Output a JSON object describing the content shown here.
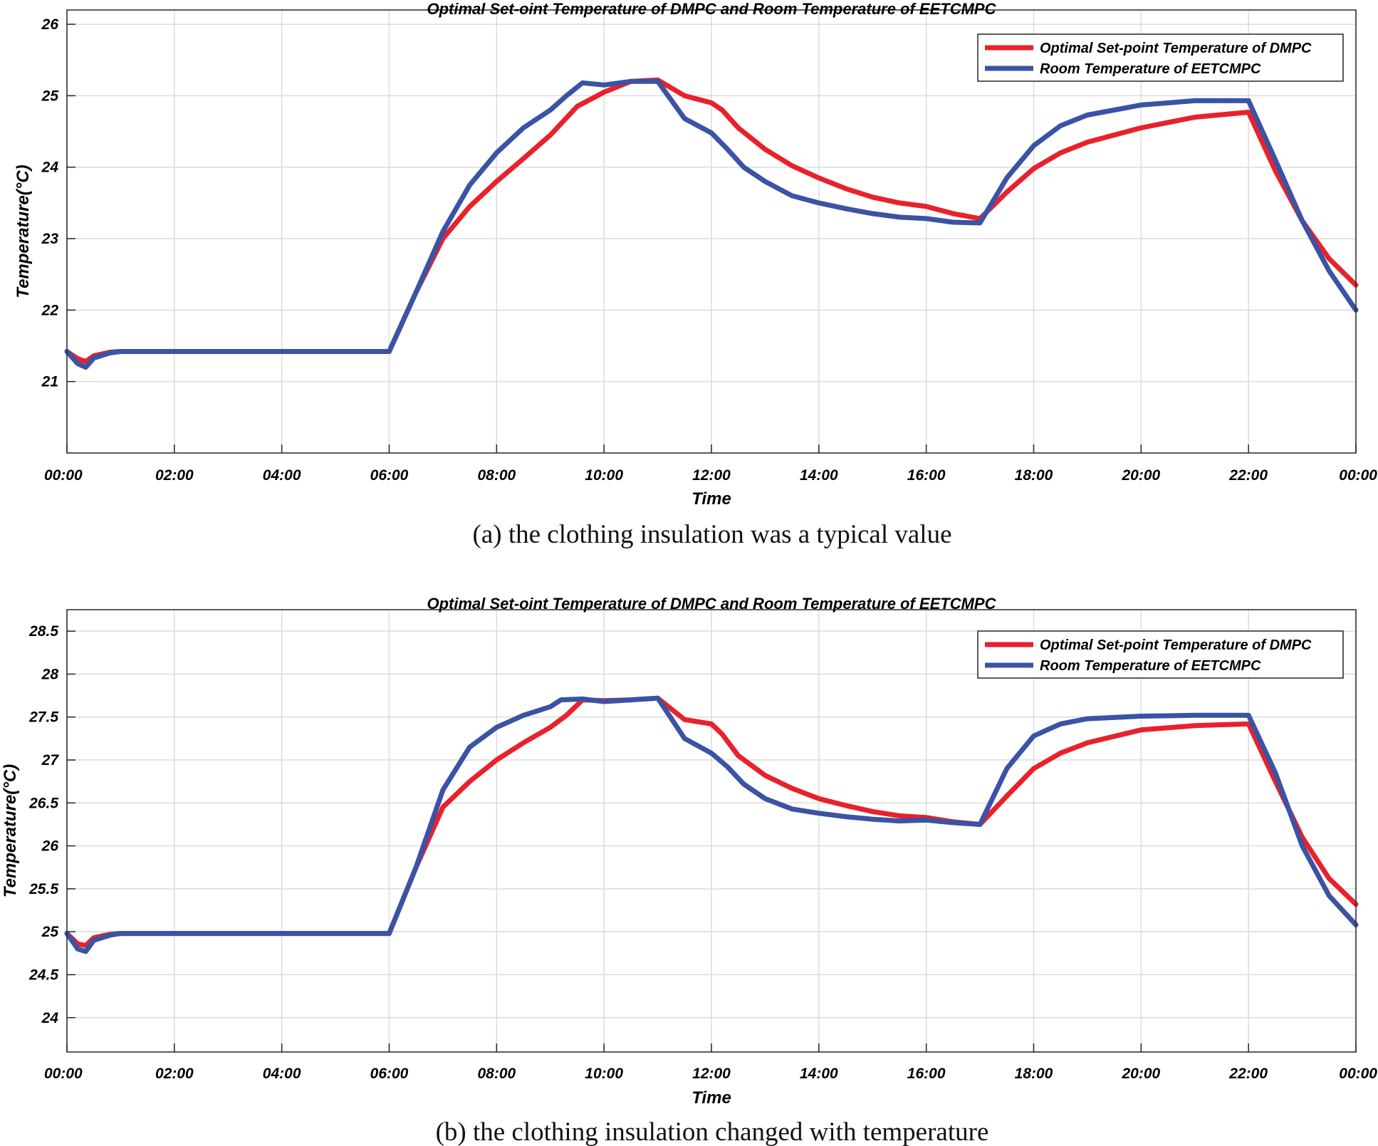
{
  "chart_data": [
    {
      "type": "line",
      "title": "Optimal Set-oint Temperature of DMPC and Room Temperature of EETCMPC",
      "xlabel": "Time",
      "ylabel": "Temperature(°C)",
      "caption": "(a) the clothing insulation was a typical value",
      "xlim": [
        0,
        24
      ],
      "ylim": [
        20,
        26.2
      ],
      "xticks": [
        0,
        2,
        4,
        6,
        8,
        10,
        12,
        14,
        16,
        18,
        20,
        22,
        24
      ],
      "xtick_labels": [
        "00:00",
        "02:00",
        "04:00",
        "06:00",
        "08:00",
        "10:00",
        "12:00",
        "14:00",
        "16:00",
        "18:00",
        "20:00",
        "22:00",
        "00:00"
      ],
      "yticks": [
        21,
        22,
        23,
        24,
        25,
        26
      ],
      "ytick_labels": [
        "21",
        "22",
        "23",
        "24",
        "25",
        "26"
      ],
      "grid": true,
      "legend_position": "top-right",
      "series": [
        {
          "name": "Optimal Set-point Temperature of DMPC",
          "color": "#e8212b",
          "x": [
            0,
            0.2,
            0.35,
            0.5,
            0.8,
            1,
            2,
            4,
            6,
            6.5,
            7,
            7.5,
            8,
            8.5,
            9,
            9.5,
            10,
            10.5,
            11,
            11.5,
            12,
            12.2,
            12.5,
            13,
            13.5,
            14,
            14.5,
            15,
            15.5,
            16,
            16.5,
            17,
            17.5,
            18,
            18.5,
            19,
            20,
            21,
            22,
            22.5,
            23,
            23.5,
            24
          ],
          "y": [
            21.42,
            21.32,
            21.28,
            21.36,
            21.41,
            21.42,
            21.42,
            21.42,
            21.42,
            22.25,
            23.0,
            23.45,
            23.8,
            24.12,
            24.45,
            24.85,
            25.05,
            25.2,
            25.22,
            25.0,
            24.9,
            24.8,
            24.55,
            24.25,
            24.02,
            23.85,
            23.7,
            23.58,
            23.5,
            23.45,
            23.35,
            23.28,
            23.65,
            23.98,
            24.2,
            24.35,
            24.55,
            24.7,
            24.77,
            23.95,
            23.25,
            22.72,
            22.35
          ]
        },
        {
          "name": "Room Temperature of EETCMPC",
          "color": "#3a53a4",
          "x": [
            0,
            0.2,
            0.35,
            0.5,
            0.8,
            1,
            2,
            4,
            6,
            6.5,
            7,
            7.5,
            8,
            8.5,
            9,
            9.3,
            9.6,
            10,
            10.5,
            11,
            11.5,
            12,
            12.3,
            12.6,
            13,
            13.5,
            14,
            14.5,
            15,
            15.5,
            16,
            16.5,
            17,
            17.5,
            18,
            18.5,
            19,
            20,
            21,
            22,
            22.5,
            23,
            23.5,
            24
          ],
          "y": [
            21.42,
            21.25,
            21.2,
            21.33,
            21.4,
            21.42,
            21.42,
            21.42,
            21.42,
            22.25,
            23.1,
            23.75,
            24.2,
            24.55,
            24.8,
            25.0,
            25.18,
            25.15,
            25.2,
            25.2,
            24.68,
            24.48,
            24.25,
            24.0,
            23.8,
            23.6,
            23.5,
            23.42,
            23.35,
            23.3,
            23.28,
            23.23,
            23.22,
            23.85,
            24.3,
            24.58,
            24.73,
            24.87,
            24.93,
            24.93,
            24.1,
            23.25,
            22.55,
            22.0
          ]
        }
      ]
    },
    {
      "type": "line",
      "title": "Optimal Set-oint Temperature of DMPC and Room Temperature of EETCMPC",
      "xlabel": "Time",
      "ylabel": "Temperature(°C)",
      "caption": "(b) the clothing insulation changed with temperature",
      "xlim": [
        0,
        24
      ],
      "ylim": [
        23.6,
        28.75
      ],
      "xticks": [
        0,
        2,
        4,
        6,
        8,
        10,
        12,
        14,
        16,
        18,
        20,
        22,
        24
      ],
      "xtick_labels": [
        "00:00",
        "02:00",
        "04:00",
        "06:00",
        "08:00",
        "10:00",
        "12:00",
        "14:00",
        "16:00",
        "18:00",
        "20:00",
        "22:00",
        "00:00"
      ],
      "yticks": [
        24,
        24.5,
        25,
        25.5,
        26,
        26.5,
        27,
        27.5,
        28,
        28.5
      ],
      "ytick_labels": [
        "24",
        "24.5",
        "25",
        "25.5",
        "26",
        "26.5",
        "27",
        "27.5",
        "28",
        "28.5"
      ],
      "grid": true,
      "legend_position": "top-right",
      "series": [
        {
          "name": "Optimal Set-point Temperature of DMPC",
          "color": "#e8212b",
          "x": [
            0,
            0.2,
            0.35,
            0.5,
            0.8,
            1,
            2,
            4,
            6,
            6.5,
            7,
            7.5,
            8,
            8.5,
            9,
            9.3,
            9.6,
            10,
            10.5,
            11,
            11.5,
            12,
            12.2,
            12.5,
            13,
            13.5,
            14,
            14.5,
            15,
            15.5,
            16,
            16.5,
            17,
            17.5,
            18,
            18.5,
            19,
            20,
            21,
            22,
            22.5,
            23,
            23.5,
            24
          ],
          "y": [
            24.98,
            24.86,
            24.84,
            24.93,
            24.97,
            24.98,
            24.98,
            24.98,
            24.98,
            25.75,
            26.45,
            26.75,
            27.0,
            27.2,
            27.38,
            27.52,
            27.7,
            27.69,
            27.7,
            27.72,
            27.47,
            27.42,
            27.3,
            27.05,
            26.82,
            26.67,
            26.55,
            26.47,
            26.4,
            26.35,
            26.33,
            26.28,
            26.25,
            26.58,
            26.9,
            27.08,
            27.2,
            27.35,
            27.4,
            27.42,
            26.75,
            26.1,
            25.62,
            25.32
          ]
        },
        {
          "name": "Room Temperature of EETCMPC",
          "color": "#3a53a4",
          "x": [
            0,
            0.2,
            0.35,
            0.5,
            0.8,
            1,
            2,
            4,
            6,
            6.5,
            7,
            7.5,
            8,
            8.5,
            9,
            9.2,
            9.6,
            10,
            10.5,
            11,
            11.5,
            12,
            12.3,
            12.6,
            13,
            13.5,
            14,
            14.5,
            15,
            15.5,
            16,
            16.5,
            17,
            17.5,
            18,
            18.5,
            19,
            20,
            21,
            22,
            22.5,
            23,
            23.5,
            24
          ],
          "y": [
            24.98,
            24.8,
            24.77,
            24.9,
            24.96,
            24.98,
            24.98,
            24.98,
            24.98,
            25.75,
            26.65,
            27.15,
            27.38,
            27.52,
            27.62,
            27.7,
            27.71,
            27.68,
            27.7,
            27.72,
            27.25,
            27.08,
            26.92,
            26.72,
            26.55,
            26.43,
            26.38,
            26.34,
            26.31,
            26.29,
            26.3,
            26.27,
            26.25,
            26.9,
            27.28,
            27.42,
            27.48,
            27.51,
            27.52,
            27.52,
            26.85,
            26.0,
            25.42,
            25.08
          ]
        }
      ]
    }
  ]
}
